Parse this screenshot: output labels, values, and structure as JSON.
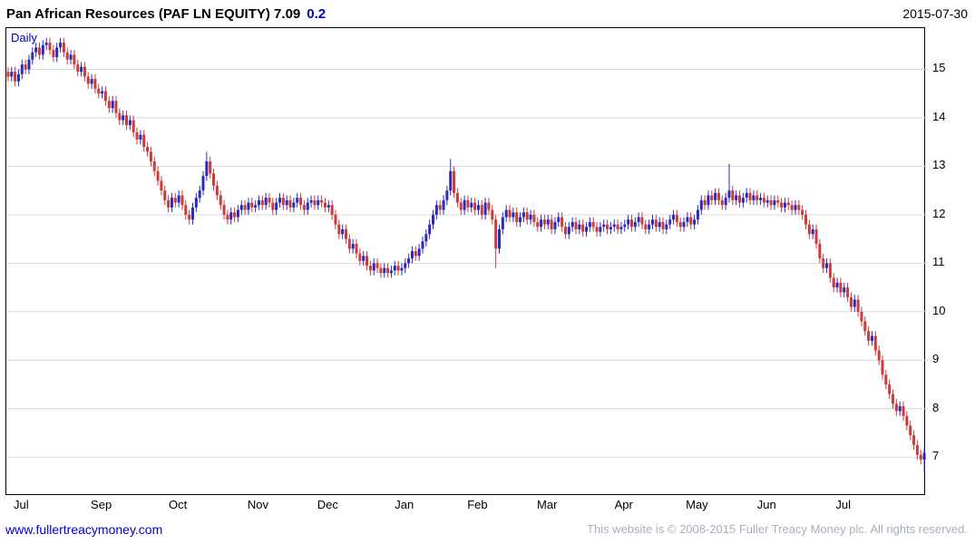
{
  "header": {
    "title": "Pan African Resources (PAF LN EQUITY) 7.09",
    "change": "0.2",
    "date": "2015-07-30"
  },
  "chart": {
    "frequency_label": "Daily"
  },
  "footer": {
    "link": "www.fullertreacymoney.com",
    "copyright": "This website is © 2008-2015 Fuller Treacy Money plc. All rights reserved."
  },
  "chart_data": {
    "type": "candlestick",
    "title": "Pan African Resources (PAF LN EQUITY)",
    "frequency": "Daily",
    "last_price": 7.09,
    "change": 0.2,
    "date": "2015-07-30",
    "ylim": [
      6.2,
      15.85
    ],
    "y_ticks": [
      7,
      8,
      9,
      10,
      11,
      12,
      13,
      14,
      15
    ],
    "x_ticks": [
      {
        "label": "Jul",
        "index": 4
      },
      {
        "label": "Sep",
        "index": 27
      },
      {
        "label": "Oct",
        "index": 49
      },
      {
        "label": "Nov",
        "index": 72
      },
      {
        "label": "Dec",
        "index": 92
      },
      {
        "label": "Jan",
        "index": 114
      },
      {
        "label": "Feb",
        "index": 135
      },
      {
        "label": "Mar",
        "index": 155
      },
      {
        "label": "Apr",
        "index": 177
      },
      {
        "label": "May",
        "index": 198
      },
      {
        "label": "Jun",
        "index": 218
      },
      {
        "label": "Jul",
        "index": 240
      }
    ],
    "up_color": "#2a2abf",
    "down_color": "#cc3b3b",
    "grid_color": "#d9d9d9",
    "first_open": 14.95,
    "wick": 0.1,
    "closes": [
      14.85,
      14.95,
      14.75,
      14.9,
      15.1,
      15.0,
      15.2,
      15.35,
      15.45,
      15.3,
      15.5,
      15.55,
      15.4,
      15.25,
      15.45,
      15.55,
      15.35,
      15.2,
      15.3,
      15.1,
      14.95,
      15.05,
      14.85,
      14.7,
      14.8,
      14.6,
      14.5,
      14.55,
      14.35,
      14.2,
      14.35,
      14.1,
      13.95,
      14.05,
      13.85,
      13.95,
      13.7,
      13.55,
      13.65,
      13.4,
      13.3,
      13.1,
      12.9,
      12.7,
      12.5,
      12.3,
      12.15,
      12.35,
      12.25,
      12.4,
      12.2,
      12.0,
      11.9,
      12.15,
      12.35,
      12.5,
      12.8,
      13.1,
      12.85,
      12.6,
      12.4,
      12.2,
      12.0,
      11.9,
      12.05,
      11.95,
      12.1,
      12.2,
      12.1,
      12.25,
      12.15,
      12.2,
      12.3,
      12.2,
      12.35,
      12.25,
      12.1,
      12.25,
      12.35,
      12.2,
      12.3,
      12.15,
      12.25,
      12.35,
      12.2,
      12.1,
      12.25,
      12.3,
      12.2,
      12.3,
      12.25,
      12.15,
      12.2,
      12.0,
      11.8,
      11.6,
      11.7,
      11.5,
      11.3,
      11.4,
      11.2,
      11.05,
      11.15,
      10.95,
      10.85,
      11.0,
      10.9,
      10.8,
      10.9,
      10.8,
      10.85,
      10.95,
      10.85,
      10.9,
      11.0,
      11.1,
      11.25,
      11.15,
      11.3,
      11.45,
      11.6,
      11.8,
      12.0,
      12.2,
      12.1,
      12.3,
      12.5,
      12.9,
      12.45,
      12.25,
      12.1,
      12.3,
      12.15,
      12.25,
      12.1,
      12.2,
      12.0,
      12.25,
      12.1,
      11.9,
      11.3,
      11.7,
      11.95,
      12.1,
      11.95,
      12.05,
      11.85,
      11.95,
      12.05,
      11.9,
      12.0,
      11.85,
      11.75,
      11.9,
      11.8,
      11.9,
      11.7,
      11.85,
      11.95,
      11.75,
      11.6,
      11.75,
      11.85,
      11.7,
      11.8,
      11.65,
      11.75,
      11.85,
      11.75,
      11.65,
      11.75,
      11.8,
      11.7,
      11.75,
      11.8,
      11.7,
      11.75,
      11.8,
      11.9,
      11.75,
      11.85,
      11.95,
      11.8,
      11.7,
      11.8,
      11.9,
      11.75,
      11.85,
      11.7,
      11.8,
      11.9,
      12.0,
      11.85,
      11.75,
      11.85,
      11.95,
      11.8,
      11.9,
      12.1,
      12.3,
      12.2,
      12.4,
      12.3,
      12.45,
      12.3,
      12.2,
      12.35,
      12.5,
      12.3,
      12.4,
      12.25,
      12.35,
      12.45,
      12.3,
      12.4,
      12.3,
      12.35,
      12.25,
      12.3,
      12.2,
      12.3,
      12.25,
      12.15,
      12.25,
      12.2,
      12.1,
      12.2,
      12.1,
      12.0,
      11.8,
      11.6,
      11.7,
      11.4,
      11.1,
      10.9,
      11.0,
      10.7,
      10.5,
      10.6,
      10.4,
      10.5,
      10.3,
      10.1,
      10.25,
      10.0,
      9.8,
      9.6,
      9.4,
      9.5,
      9.2,
      9.0,
      8.7,
      8.5,
      8.3,
      8.1,
      7.95,
      8.05,
      7.85,
      7.65,
      7.45,
      7.25,
      7.05,
      6.95,
      7.09
    ],
    "spikes": [
      {
        "index": 57,
        "high": 13.3
      },
      {
        "index": 127,
        "high": 13.15
      },
      {
        "index": 140,
        "low": 10.9
      },
      {
        "index": 207,
        "high": 13.05
      },
      {
        "index": 263,
        "low": 6.68
      }
    ]
  }
}
